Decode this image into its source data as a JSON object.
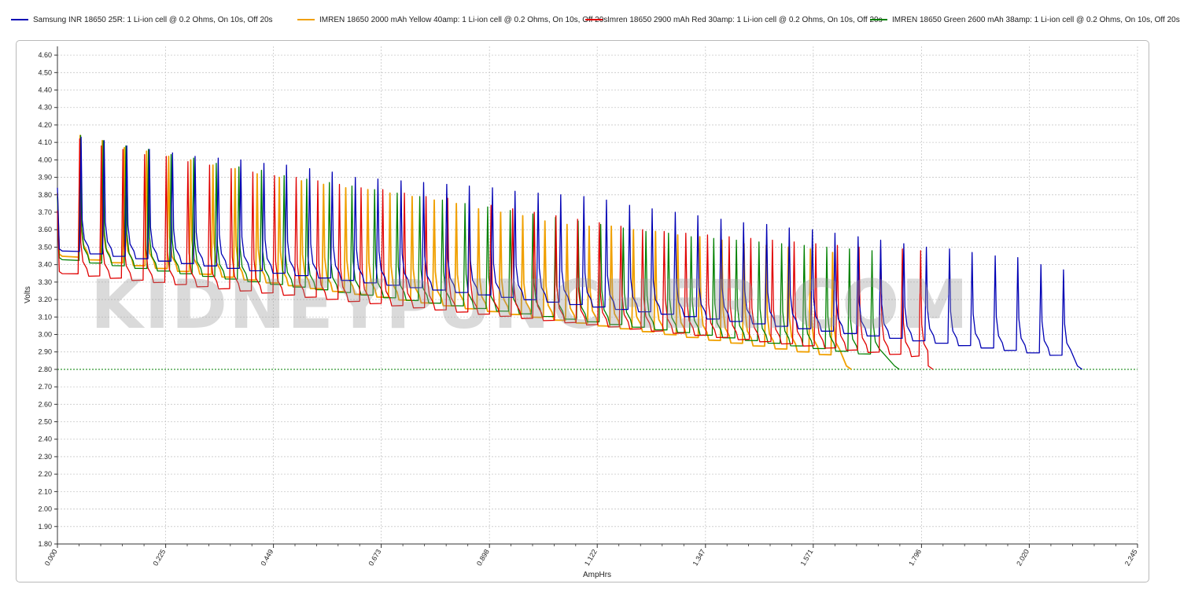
{
  "legend": [
    {
      "label": "Samsung INR 18650 25R: 1 Li-ion cell @ 0.2 Ohms, On 10s, Off 20s",
      "color": "#0000b4"
    },
    {
      "label": "IMREN 18650 2000 mAh Yellow 40amp: 1 Li-ion cell @ 0.2 Ohms, On 10s, Off 20s",
      "color": "#f0a000"
    },
    {
      "label": "Imren 18650 2900 mAh Red 30amp: 1 Li-ion cell @ 0.2 Ohms, On 10s, Off 20s",
      "color": "#e00000"
    },
    {
      "label": "IMREN 18650 Green 2600 mAh 38amp: 1 Li-ion cell @ 0.2 Ohms, On 10s, Off 20s",
      "color": "#008000"
    }
  ],
  "watermark": "KIDNEYPUNCHER.COM",
  "chart_data": {
    "type": "line",
    "xlabel": "AmpHrs",
    "ylabel": "Volts",
    "xlim": [
      0.0,
      2.245
    ],
    "ylim": [
      1.8,
      4.65
    ],
    "x_ticks": [
      "0.000",
      "0.225",
      "0.449",
      "0.673",
      "0.898",
      "1.122",
      "1.347",
      "1.571",
      "1.796",
      "2.020",
      "2.245"
    ],
    "y_ticks": [
      "1.80",
      "1.90",
      "2.00",
      "2.10",
      "2.20",
      "2.30",
      "2.40",
      "2.50",
      "2.60",
      "2.70",
      "2.80",
      "2.90",
      "3.00",
      "3.10",
      "3.20",
      "3.30",
      "3.40",
      "3.50",
      "3.60",
      "3.70",
      "3.80",
      "3.90",
      "4.00",
      "4.10",
      "4.20",
      "4.30",
      "4.40",
      "4.50",
      "4.60"
    ],
    "cutoff_line": {
      "y": 2.8,
      "color": "#008000"
    },
    "grid": true,
    "legend_position": "top",
    "series": [
      {
        "name": "Samsung INR 18650 25R: 1 Li-ion cell @ 0.2 Ohms, On 10s, Off 20s",
        "color": "#0000b4",
        "start_v": 3.49,
        "end_x": 2.13,
        "end_v": 2.8,
        "pulse_x": [
          0.05,
          0.098,
          0.145,
          0.192,
          0.24,
          0.287,
          0.335,
          0.382,
          0.43,
          0.477,
          0.525,
          0.572,
          0.62,
          0.667,
          0.715,
          0.762,
          0.81,
          0.857,
          0.905,
          0.952,
          1.0,
          1.047,
          1.095,
          1.142,
          1.19,
          1.237,
          1.285,
          1.332,
          1.38,
          1.427,
          1.475,
          1.522,
          1.57,
          1.617,
          1.665,
          1.712,
          1.76,
          1.807,
          1.855,
          1.902,
          1.95,
          1.997,
          2.045,
          2.092
        ],
        "pulse_v": [
          4.13,
          4.11,
          4.08,
          4.06,
          4.04,
          4.02,
          4.01,
          4.0,
          3.98,
          3.97,
          3.95,
          3.93,
          3.9,
          3.89,
          3.88,
          3.87,
          3.86,
          3.85,
          3.84,
          3.82,
          3.81,
          3.8,
          3.79,
          3.77,
          3.74,
          3.72,
          3.7,
          3.68,
          3.66,
          3.64,
          3.63,
          3.61,
          3.6,
          3.58,
          3.56,
          3.54,
          3.52,
          3.5,
          3.49,
          3.47,
          3.45,
          3.44,
          3.4,
          3.37
        ]
      },
      {
        "name": "IMREN 18650 2000 mAh Yellow 40amp: 1 Li-ion cell @ 0.2 Ohms, On 10s, Off 20s",
        "color": "#f0a000",
        "start_v": 3.46,
        "end_x": 1.65,
        "end_v": 2.8,
        "pulse_x": [
          0.048,
          0.094,
          0.14,
          0.186,
          0.232,
          0.278,
          0.324,
          0.37,
          0.416,
          0.462,
          0.508,
          0.554,
          0.6,
          0.646,
          0.692,
          0.738,
          0.784,
          0.83,
          0.876,
          0.922,
          0.968,
          1.014,
          1.06,
          1.106,
          1.152,
          1.198,
          1.244,
          1.29,
          1.336,
          1.382,
          1.428,
          1.474,
          1.52,
          1.566,
          1.612
        ],
        "pulse_v": [
          4.14,
          4.11,
          4.07,
          4.05,
          4.02,
          4.0,
          3.97,
          3.95,
          3.92,
          3.9,
          3.88,
          3.86,
          3.84,
          3.83,
          3.81,
          3.79,
          3.77,
          3.75,
          3.72,
          3.7,
          3.68,
          3.65,
          3.63,
          3.62,
          3.62,
          3.6,
          3.59,
          3.57,
          3.56,
          3.54,
          3.52,
          3.51,
          3.5,
          3.49,
          3.47
        ]
      },
      {
        "name": "Imren 18650 2900 mAh Red 30amp: 1 Li-ion cell @ 0.2 Ohms, On 10s, Off 20s",
        "color": "#e00000",
        "start_v": 3.36,
        "end_x": 1.82,
        "end_v": 2.8,
        "pulse_x": [
          0.047,
          0.092,
          0.137,
          0.182,
          0.227,
          0.272,
          0.317,
          0.362,
          0.407,
          0.452,
          0.497,
          0.542,
          0.587,
          0.632,
          0.677,
          0.722,
          0.767,
          0.812,
          0.857,
          0.902,
          0.947,
          0.992,
          1.037,
          1.082,
          1.127,
          1.172,
          1.217,
          1.262,
          1.307,
          1.352,
          1.397,
          1.442,
          1.487,
          1.532,
          1.577,
          1.622,
          1.667,
          1.712,
          1.757,
          1.795
        ],
        "pulse_v": [
          4.12,
          4.08,
          4.06,
          4.03,
          4.02,
          3.99,
          3.97,
          3.95,
          3.93,
          3.91,
          3.9,
          3.88,
          3.86,
          3.84,
          3.83,
          3.81,
          3.79,
          3.78,
          3.76,
          3.74,
          3.72,
          3.7,
          3.68,
          3.66,
          3.64,
          3.62,
          3.6,
          3.59,
          3.58,
          3.57,
          3.56,
          3.55,
          3.54,
          3.53,
          3.52,
          3.51,
          3.5,
          3.49,
          3.49,
          3.48
        ]
      },
      {
        "name": "IMREN 18650 Green 2600 mAh 38amp: 1 Li-ion cell @ 0.2 Ohms, On 10s, Off 20s",
        "color": "#008000",
        "start_v": 3.44,
        "end_x": 1.75,
        "end_v": 2.8,
        "pulse_x": [
          0.049,
          0.096,
          0.143,
          0.19,
          0.237,
          0.284,
          0.331,
          0.378,
          0.425,
          0.472,
          0.519,
          0.566,
          0.613,
          0.66,
          0.707,
          0.754,
          0.801,
          0.848,
          0.895,
          0.942,
          0.989,
          1.036,
          1.083,
          1.13,
          1.177,
          1.224,
          1.271,
          1.318,
          1.365,
          1.412,
          1.459,
          1.506,
          1.553,
          1.6,
          1.647,
          1.694
        ],
        "pulse_v": [
          4.14,
          4.11,
          4.08,
          4.06,
          4.03,
          4.01,
          3.98,
          3.96,
          3.94,
          3.91,
          3.89,
          3.87,
          3.85,
          3.83,
          3.81,
          3.79,
          3.77,
          3.75,
          3.73,
          3.71,
          3.69,
          3.67,
          3.65,
          3.63,
          3.61,
          3.59,
          3.58,
          3.56,
          3.55,
          3.54,
          3.53,
          3.52,
          3.51,
          3.5,
          3.49,
          3.48
        ]
      }
    ]
  }
}
